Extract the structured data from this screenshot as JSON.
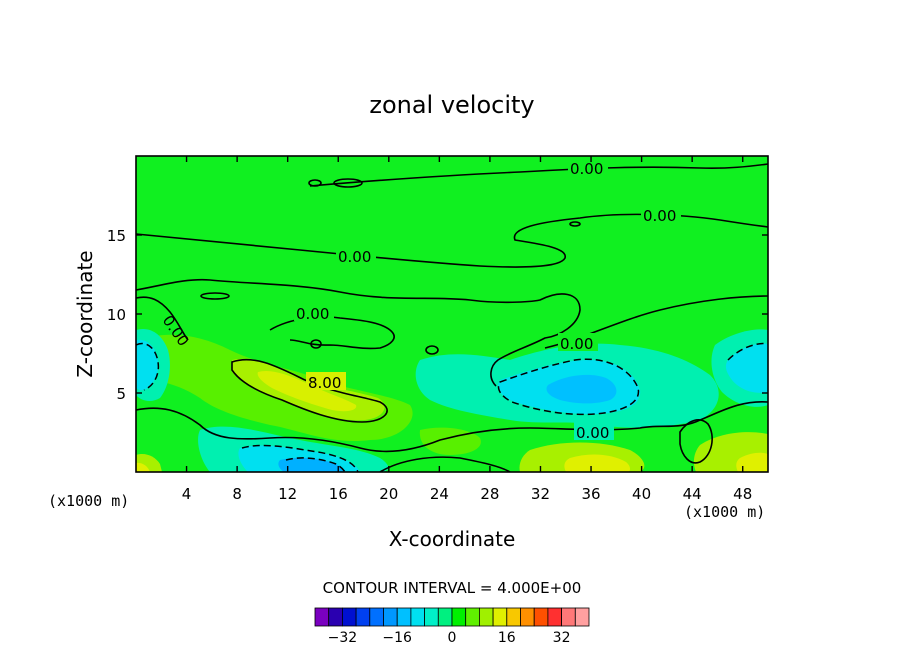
{
  "chart_data": {
    "type": "contour",
    "title": "zonal velocity",
    "xlabel": "X-coordinate",
    "ylabel": "Z-coordinate",
    "x_unit_label": "(x1000 m)",
    "x_unit_label_right": "(x1000 m)",
    "xlim": [
      0,
      50
    ],
    "ylim": [
      0,
      20
    ],
    "x_ticks": [
      4,
      8,
      12,
      16,
      20,
      24,
      28,
      32,
      36,
      40,
      44,
      48
    ],
    "y_ticks": [
      5,
      10,
      15
    ],
    "contour_interval_text": "CONTOUR INTERVAL = 4.000E+00",
    "contour_interval": 4.0,
    "contour_labels": [
      "0.00",
      "0.00",
      "0.00",
      "0.00",
      "0.00",
      "0.00",
      "0.00",
      "8.00"
    ],
    "colorbar": {
      "levels": [
        -36,
        -32,
        -28,
        -24,
        -20,
        -16,
        -12,
        -8,
        -4,
        0,
        4,
        8,
        12,
        16,
        20,
        24,
        28,
        32,
        36
      ],
      "colors": [
        "#7a00c0",
        "#2a00b0",
        "#0010d0",
        "#0040f0",
        "#0070ff",
        "#0098ff",
        "#00c0ff",
        "#00e0f0",
        "#00f0c8",
        "#00f080",
        "#00f000",
        "#60f000",
        "#a0f000",
        "#e0f000",
        "#f8c800",
        "#ff9000",
        "#ff5000",
        "#ff3030",
        "#ff7878",
        "#ffa0a0"
      ],
      "tick_labels": [
        "-32",
        "-16",
        "0",
        "16",
        "32"
      ],
      "tick_values": [
        -32,
        -16,
        0,
        16,
        32
      ]
    },
    "background_color": "#00f020"
  }
}
